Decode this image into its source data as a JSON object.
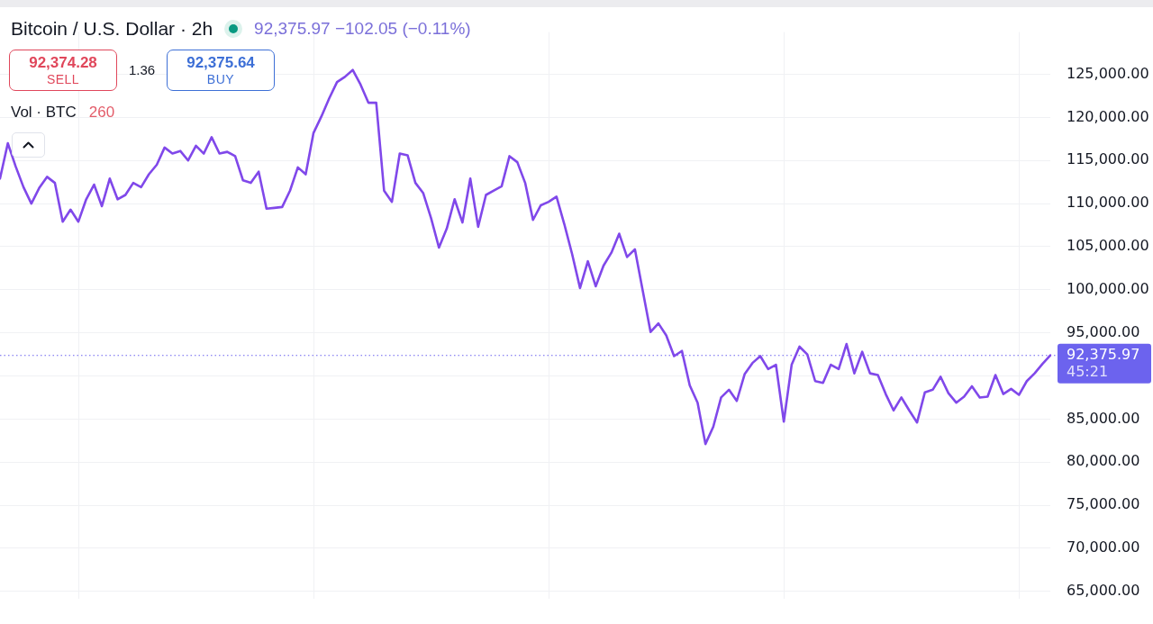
{
  "chart_data": {
    "type": "line",
    "title": "Bitcoin / U.S. Dollar · 2h",
    "subtitle": "92,375.97 −102.05 (−0.11%)",
    "annotations": [
      "92,374.28",
      "SELL",
      "1.36",
      "92,375.64",
      "BUY",
      "Vol · BTC",
      "260",
      "45:21"
    ],
    "categories": [
      null,
      null,
      null,
      null,
      null,
      null,
      null,
      null,
      null,
      null,
      null,
      null,
      null,
      null,
      null,
      null,
      null,
      null,
      null,
      null,
      null,
      null,
      null,
      null,
      null,
      null,
      null,
      null,
      null,
      null,
      null,
      null,
      null,
      null,
      null,
      null,
      null,
      null,
      null,
      null,
      null,
      null,
      null,
      null,
      null,
      null,
      null,
      null,
      null,
      null,
      null,
      null,
      null,
      null,
      null,
      null,
      null,
      null,
      null,
      null,
      null,
      null,
      null,
      null,
      null,
      null,
      null,
      null,
      null,
      null,
      null,
      null,
      null,
      null,
      null,
      null,
      null,
      null,
      null,
      null,
      null,
      null,
      null,
      null,
      null,
      null,
      null,
      null,
      null,
      null,
      null,
      null,
      null,
      null,
      null,
      null,
      null,
      null,
      null,
      null,
      null,
      null,
      null,
      null,
      null,
      null,
      null,
      null,
      null,
      null,
      null,
      null,
      null,
      null,
      null,
      null,
      null,
      null,
      null,
      null,
      null,
      null,
      null,
      null,
      null,
      null,
      null,
      null,
      null,
      null,
      null,
      null,
      null,
      null,
      null
    ],
    "series": [
      {
        "color": "#8048ea",
        "values": [
          112900,
          117000,
          114300,
          111900,
          110000,
          111800,
          113100,
          112400,
          107900,
          109300,
          107900,
          110500,
          112200,
          109700,
          112900,
          110500,
          111000,
          112400,
          111900,
          113400,
          114500,
          116500,
          115800,
          116100,
          115000,
          116700,
          115800,
          117700,
          115800,
          116000,
          115500,
          112700,
          112400,
          113700,
          109400,
          109500,
          109600,
          111500,
          114200,
          113400,
          118200,
          120100,
          122200,
          124100,
          124700,
          125500,
          123800,
          121700,
          121700,
          111500,
          110200,
          115800,
          115600,
          112400,
          111200,
          108300,
          104900,
          107100,
          110500,
          107800,
          112900,
          107300,
          111000,
          111500,
          112000,
          115500,
          114800,
          112400,
          108100,
          109800,
          110200,
          110800,
          107600,
          104100,
          100200,
          103300,
          100400,
          102800,
          104300,
          106500,
          103800,
          104700,
          99900,
          95100,
          96100,
          94700,
          92300,
          92900,
          88900,
          86900,
          82100,
          84100,
          87500,
          88400,
          87100,
          90200,
          91500,
          92300,
          90800,
          91300,
          84700,
          91300,
          93400,
          92500,
          89400,
          89200,
          91300,
          90800,
          93700,
          90300,
          92800,
          90300,
          90100,
          87900,
          86000,
          87500,
          86000,
          84600,
          88100,
          88400,
          89900,
          88000,
          86900,
          87600,
          88800,
          87500,
          87600,
          90100,
          87900,
          88500,
          87800,
          89400,
          90300,
          91400,
          92400
        ]
      }
    ],
    "ylim": [
      64100,
      129900
    ],
    "yticks": [
      {
        "value": 65000,
        "label": "65,000.00"
      },
      {
        "value": 70000,
        "label": "70,000.00"
      },
      {
        "value": 75000,
        "label": "75,000.00"
      },
      {
        "value": 80000,
        "label": "80,000.00"
      },
      {
        "value": 85000,
        "label": "85,000.00"
      },
      {
        "value": 90000,
        "label": null
      },
      {
        "value": 95000,
        "label": "95,000.00"
      },
      {
        "value": 100000,
        "label": "100,000.00"
      },
      {
        "value": 105000,
        "label": "105,000.00"
      },
      {
        "value": 110000,
        "label": "110,000.00"
      },
      {
        "value": 115000,
        "label": "115,000.00"
      },
      {
        "value": 120000,
        "label": "120,000.00"
      },
      {
        "value": 125000,
        "label": "125,000.00"
      }
    ],
    "ref_lines": [
      {
        "axis": "y",
        "value": 92375.97,
        "label": "92,375.97",
        "color": "#6c63ee",
        "line_style": "dotted"
      }
    ],
    "grid": true,
    "tick_labels": "y",
    "marker": "none"
  }
}
